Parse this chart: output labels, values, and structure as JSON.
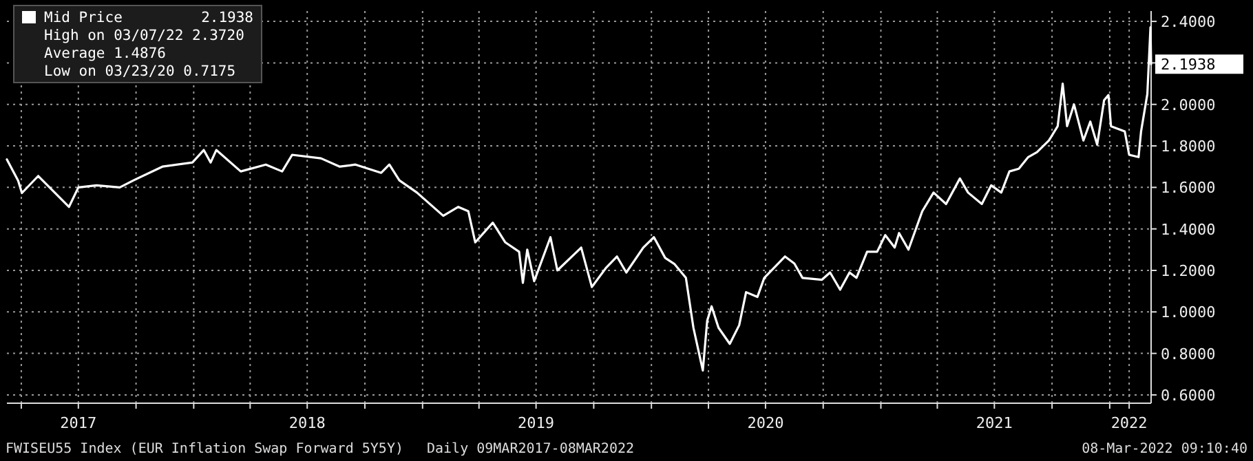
{
  "chart_data": {
    "type": "line",
    "legend": "top left",
    "grid": true,
    "marker": "none",
    "line_style": "solid",
    "xlim": [
      "2017-03-09",
      "2022-03-08"
    ],
    "ylim": [
      0.56,
      2.45
    ],
    "xticks": [
      {
        "value": "2017-04-01",
        "label": null
      },
      {
        "value": "2017-07-01",
        "label": "2017"
      },
      {
        "value": "2017-10-01",
        "label": null
      },
      {
        "value": "2018-01-01",
        "label": null
      },
      {
        "value": "2018-04-01",
        "label": null
      },
      {
        "value": "2018-07-01",
        "label": "2018"
      },
      {
        "value": "2018-10-01",
        "label": null
      },
      {
        "value": "2019-01-01",
        "label": null
      },
      {
        "value": "2019-04-01",
        "label": null
      },
      {
        "value": "2019-07-01",
        "label": "2019"
      },
      {
        "value": "2019-10-01",
        "label": null
      },
      {
        "value": "2020-01-01",
        "label": null
      },
      {
        "value": "2020-04-01",
        "label": null
      },
      {
        "value": "2020-07-01",
        "label": "2020"
      },
      {
        "value": "2020-10-01",
        "label": null
      },
      {
        "value": "2021-01-01",
        "label": null
      },
      {
        "value": "2021-04-01",
        "label": null
      },
      {
        "value": "2021-07-01",
        "label": "2021"
      },
      {
        "value": "2021-10-01",
        "label": null
      },
      {
        "value": "2022-01-01",
        "label": null
      },
      {
        "value": "2022-02-01",
        "label": "2022"
      }
    ],
    "yticks": [
      {
        "value": 0.6,
        "label": "0.6000"
      },
      {
        "value": 0.8,
        "label": "0.8000"
      },
      {
        "value": 1.0,
        "label": "1.0000"
      },
      {
        "value": 1.2,
        "label": "1.2000"
      },
      {
        "value": 1.4,
        "label": "1.4000"
      },
      {
        "value": 1.6,
        "label": "1.6000"
      },
      {
        "value": 1.8,
        "label": "1.8000"
      },
      {
        "value": 2.0,
        "label": "2.0000"
      },
      {
        "value": 2.2,
        "label": null
      },
      {
        "value": 2.4,
        "label": "2.4000"
      }
    ],
    "x": [
      "2017-03-09",
      "2017-03-27",
      "2017-04-02",
      "2017-04-28",
      "2017-06-16",
      "2017-07-01",
      "2017-07-30",
      "2017-09-05",
      "2017-09-27",
      "2017-11-12",
      "2017-12-30",
      "2018-01-17",
      "2018-01-28",
      "2018-02-06",
      "2018-03-17",
      "2018-04-26",
      "2018-05-22",
      "2018-06-07",
      "2018-07-23",
      "2018-08-22",
      "2018-09-16",
      "2018-10-27",
      "2018-11-09",
      "2018-11-25",
      "2018-12-23",
      "2019-02-03",
      "2019-02-27",
      "2019-03-15",
      "2019-03-26",
      "2019-04-23",
      "2019-05-13",
      "2019-06-04",
      "2019-06-10",
      "2019-06-17",
      "2019-06-28",
      "2019-07-24",
      "2019-08-04",
      "2019-09-11",
      "2019-09-28",
      "2019-10-20",
      "2019-11-07",
      "2019-11-22",
      "2019-12-19",
      "2020-01-05",
      "2020-01-23",
      "2020-02-07",
      "2020-02-25",
      "2020-03-08",
      "2020-03-23",
      "2020-03-30",
      "2020-04-06",
      "2020-04-17",
      "2020-05-05",
      "2020-05-20",
      "2020-05-31",
      "2020-06-18",
      "2020-06-29",
      "2020-08-01",
      "2020-08-16",
      "2020-08-29",
      "2020-09-29",
      "2020-10-12",
      "2020-10-28",
      "2020-11-12",
      "2020-11-23",
      "2020-12-10",
      "2020-12-26",
      "2021-01-08",
      "2021-01-23",
      "2021-01-30",
      "2021-02-14",
      "2021-03-08",
      "2021-03-26",
      "2021-04-15",
      "2021-05-07",
      "2021-05-20",
      "2021-06-11",
      "2021-06-26",
      "2021-07-12",
      "2021-07-25",
      "2021-08-09",
      "2021-08-24",
      "2021-09-07",
      "2021-09-26",
      "2021-10-10",
      "2021-10-18",
      "2021-10-25",
      "2021-11-05",
      "2021-11-20",
      "2021-12-01",
      "2021-12-12",
      "2021-12-23",
      "2021-12-30",
      "2022-01-03",
      "2022-01-25",
      "2022-02-01",
      "2022-02-16",
      "2022-02-20",
      "2022-03-02",
      "2022-03-07",
      "2022-03-08"
    ],
    "series": [
      {
        "name": "Mid Price",
        "color": "#ffffff",
        "values": [
          1.735,
          1.632,
          1.573,
          1.655,
          1.506,
          1.6,
          1.61,
          1.6,
          1.634,
          1.7,
          1.72,
          1.78,
          1.72,
          1.78,
          1.677,
          1.71,
          1.677,
          1.757,
          1.74,
          1.7,
          1.71,
          1.67,
          1.71,
          1.634,
          1.575,
          1.463,
          1.506,
          1.485,
          1.335,
          1.43,
          1.335,
          1.29,
          1.14,
          1.3,
          1.148,
          1.36,
          1.2,
          1.31,
          1.12,
          1.21,
          1.267,
          1.19,
          1.31,
          1.36,
          1.26,
          1.23,
          1.164,
          0.924,
          0.7175,
          0.958,
          1.027,
          0.924,
          0.846,
          0.936,
          1.095,
          1.072,
          1.164,
          1.267,
          1.233,
          1.164,
          1.155,
          1.19,
          1.107,
          1.19,
          1.164,
          1.29,
          1.29,
          1.37,
          1.31,
          1.38,
          1.3,
          1.485,
          1.575,
          1.52,
          1.643,
          1.575,
          1.52,
          1.61,
          1.575,
          1.677,
          1.69,
          1.746,
          1.77,
          1.826,
          1.895,
          2.1,
          1.895,
          2.0,
          1.826,
          1.917,
          1.806,
          2.02,
          2.045,
          1.895,
          1.87,
          1.757,
          1.746,
          1.87,
          2.05,
          2.372,
          2.1938
        ]
      }
    ],
    "annotations": [
      "2.1938",
      "High on 03/07/22 2.3720",
      "Average 1.4876",
      "Low on 03/23/20 0.7175",
      {
        "text": "2.1938",
        "x": "2022-03-08",
        "y": 2.1938
      },
      "FWISEU55 Index (EUR Inflation Swap Forward 5Y5Y)",
      "Daily 09MAR2017-08MAR2022",
      "08-Mar-2022 09:10:40"
    ]
  }
}
